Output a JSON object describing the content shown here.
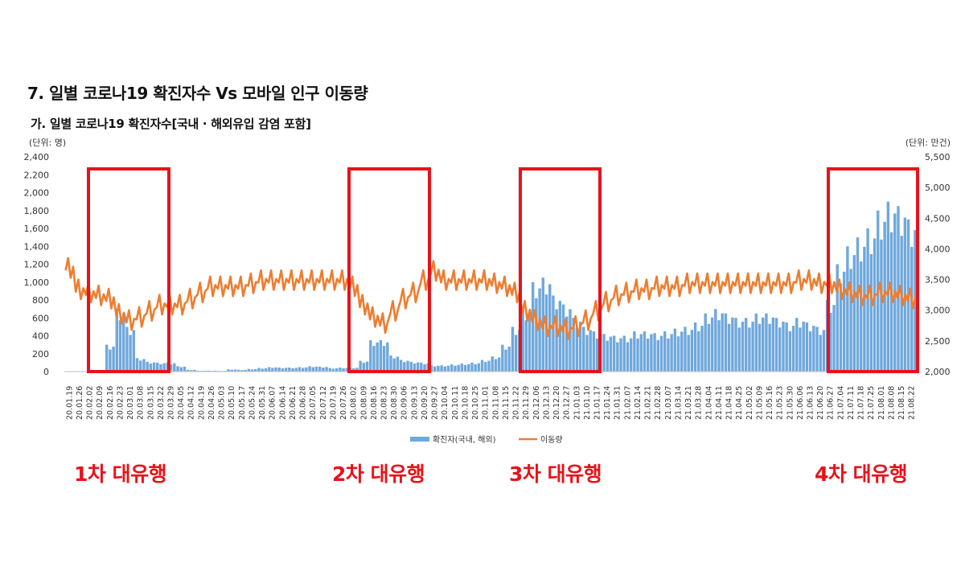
{
  "title": "7. 일별 코로나19 확진자수 Vs 모바일 인구 이동량",
  "subtitle": "가. 일별 코로나19 확진자수[국내 · 해외유입 감염 포함]",
  "unit_left": "(단위: 명)",
  "unit_right": "(단위: 만건)",
  "waves": [
    {
      "label": "1차 대유행"
    },
    {
      "label": "2차 대유행"
    },
    {
      "label": "3차 대유행"
    },
    {
      "label": "4차 대유행"
    }
  ],
  "colors": {
    "bars": "#6fa8dc",
    "line": "#ed7d31",
    "highlight": "#e8121b"
  },
  "chart_data": {
    "type": "bar+line",
    "x_tick_labels": [
      "20.01.19",
      "20.01.26",
      "20.02.02",
      "20.02.09",
      "20.02.16",
      "20.02.23",
      "20.03.01",
      "20.03.08",
      "20.03.15",
      "20.03.22",
      "20.03.29",
      "20.04.05",
      "20.04.12",
      "20.04.19",
      "20.04.26",
      "20.05.03",
      "20.05.10",
      "20.05.17",
      "20.05.24",
      "20.05.31",
      "20.06.07",
      "20.06.14",
      "20.06.21",
      "20.06.28",
      "20.07.05",
      "20.07.12",
      "20.07.19",
      "20.07.26",
      "20.08.02",
      "20.08.09",
      "20.08.16",
      "20.08.23",
      "20.08.30",
      "20.09.06",
      "20.09.13",
      "20.09.20",
      "20.09.27",
      "20.10.04",
      "20.10.11",
      "20.10.18",
      "20.10.25",
      "20.11.01",
      "20.11.08",
      "20.11.15",
      "20.11.22",
      "20.11.29",
      "20.12.06",
      "20.12.13",
      "20.12.20",
      "20.12.27",
      "21.01.03",
      "21.01.10",
      "21.01.17",
      "21.01.24",
      "21.01.31",
      "21.02.07",
      "21.02.14",
      "21.02.21",
      "21.02.28",
      "21.03.07",
      "21.03.14",
      "21.03.21",
      "21.03.28",
      "21.04.04",
      "21.04.11",
      "21.04.18",
      "21.04.25",
      "21.05.02",
      "21.05.09",
      "21.05.16",
      "21.05.23",
      "21.05.30",
      "21.06.06",
      "21.06.13",
      "21.06.20",
      "21.06.27",
      "21.07.04",
      "21.07.11",
      "21.07.18",
      "21.07.25",
      "21.08.01",
      "21.08.08",
      "21.08.15",
      "21.08.22"
    ],
    "left_axis": {
      "ticks": [
        "0",
        "200",
        "400",
        "600",
        "800",
        "1,000",
        "1,200",
        "1,400",
        "1,600",
        "1,800",
        "2,000",
        "2,200",
        "2,400"
      ],
      "ylim": [
        0,
        2400
      ]
    },
    "right_axis": {
      "ticks": [
        "2,000",
        "2,500",
        "3,000",
        "3,500",
        "4,000",
        "4,500",
        "5,000",
        "5,500"
      ],
      "ylim": [
        2000,
        5500
      ]
    },
    "series": [
      {
        "name": "확진자(국내, 해외)",
        "type": "bar",
        "axis": "left",
        "weekly_values": [
          1,
          0,
          3,
          3,
          300,
          700,
          500,
          150,
          110,
          100,
          100,
          60,
          20,
          10,
          10,
          8,
          25,
          20,
          30,
          40,
          50,
          45,
          45,
          50,
          60,
          55,
          40,
          45,
          45,
          120,
          350,
          350,
          180,
          130,
          110,
          100,
          70,
          70,
          80,
          90,
          100,
          130,
          170,
          300,
          500,
          700,
          1000,
          1050,
          850,
          750,
          600,
          500,
          450,
          420,
          400,
          400,
          450,
          450,
          430,
          450,
          480,
          500,
          550,
          650,
          700,
          650,
          600,
          600,
          650,
          650,
          600,
          550,
          600,
          550,
          500,
          800,
          1200,
          1400,
          1500,
          1600,
          1800,
          1900,
          1850,
          1700
        ]
      },
      {
        "name": "이동량",
        "type": "line",
        "axis": "right",
        "weekly_values": [
          3650,
          3300,
          3250,
          3200,
          3150,
          2900,
          2800,
          2850,
          2950,
          3050,
          3050,
          3050,
          3150,
          3250,
          3350,
          3350,
          3350,
          3350,
          3400,
          3450,
          3450,
          3450,
          3450,
          3450,
          3450,
          3450,
          3450,
          3450,
          3350,
          3050,
          2850,
          2750,
          2950,
          3150,
          3250,
          3450,
          3600,
          3450,
          3450,
          3450,
          3450,
          3450,
          3400,
          3350,
          3250,
          2950,
          2800,
          2700,
          2700,
          2650,
          2700,
          2800,
          2950,
          3100,
          3200,
          3250,
          3300,
          3300,
          3350,
          3350,
          3350,
          3400,
          3400,
          3400,
          3400,
          3400,
          3400,
          3400,
          3400,
          3400,
          3400,
          3400,
          3450,
          3450,
          3400,
          3400,
          3300,
          3250,
          3200,
          3200,
          3250,
          3250,
          3200,
          3150
        ]
      }
    ],
    "legend": {
      "placement": "bottom-center"
    }
  }
}
